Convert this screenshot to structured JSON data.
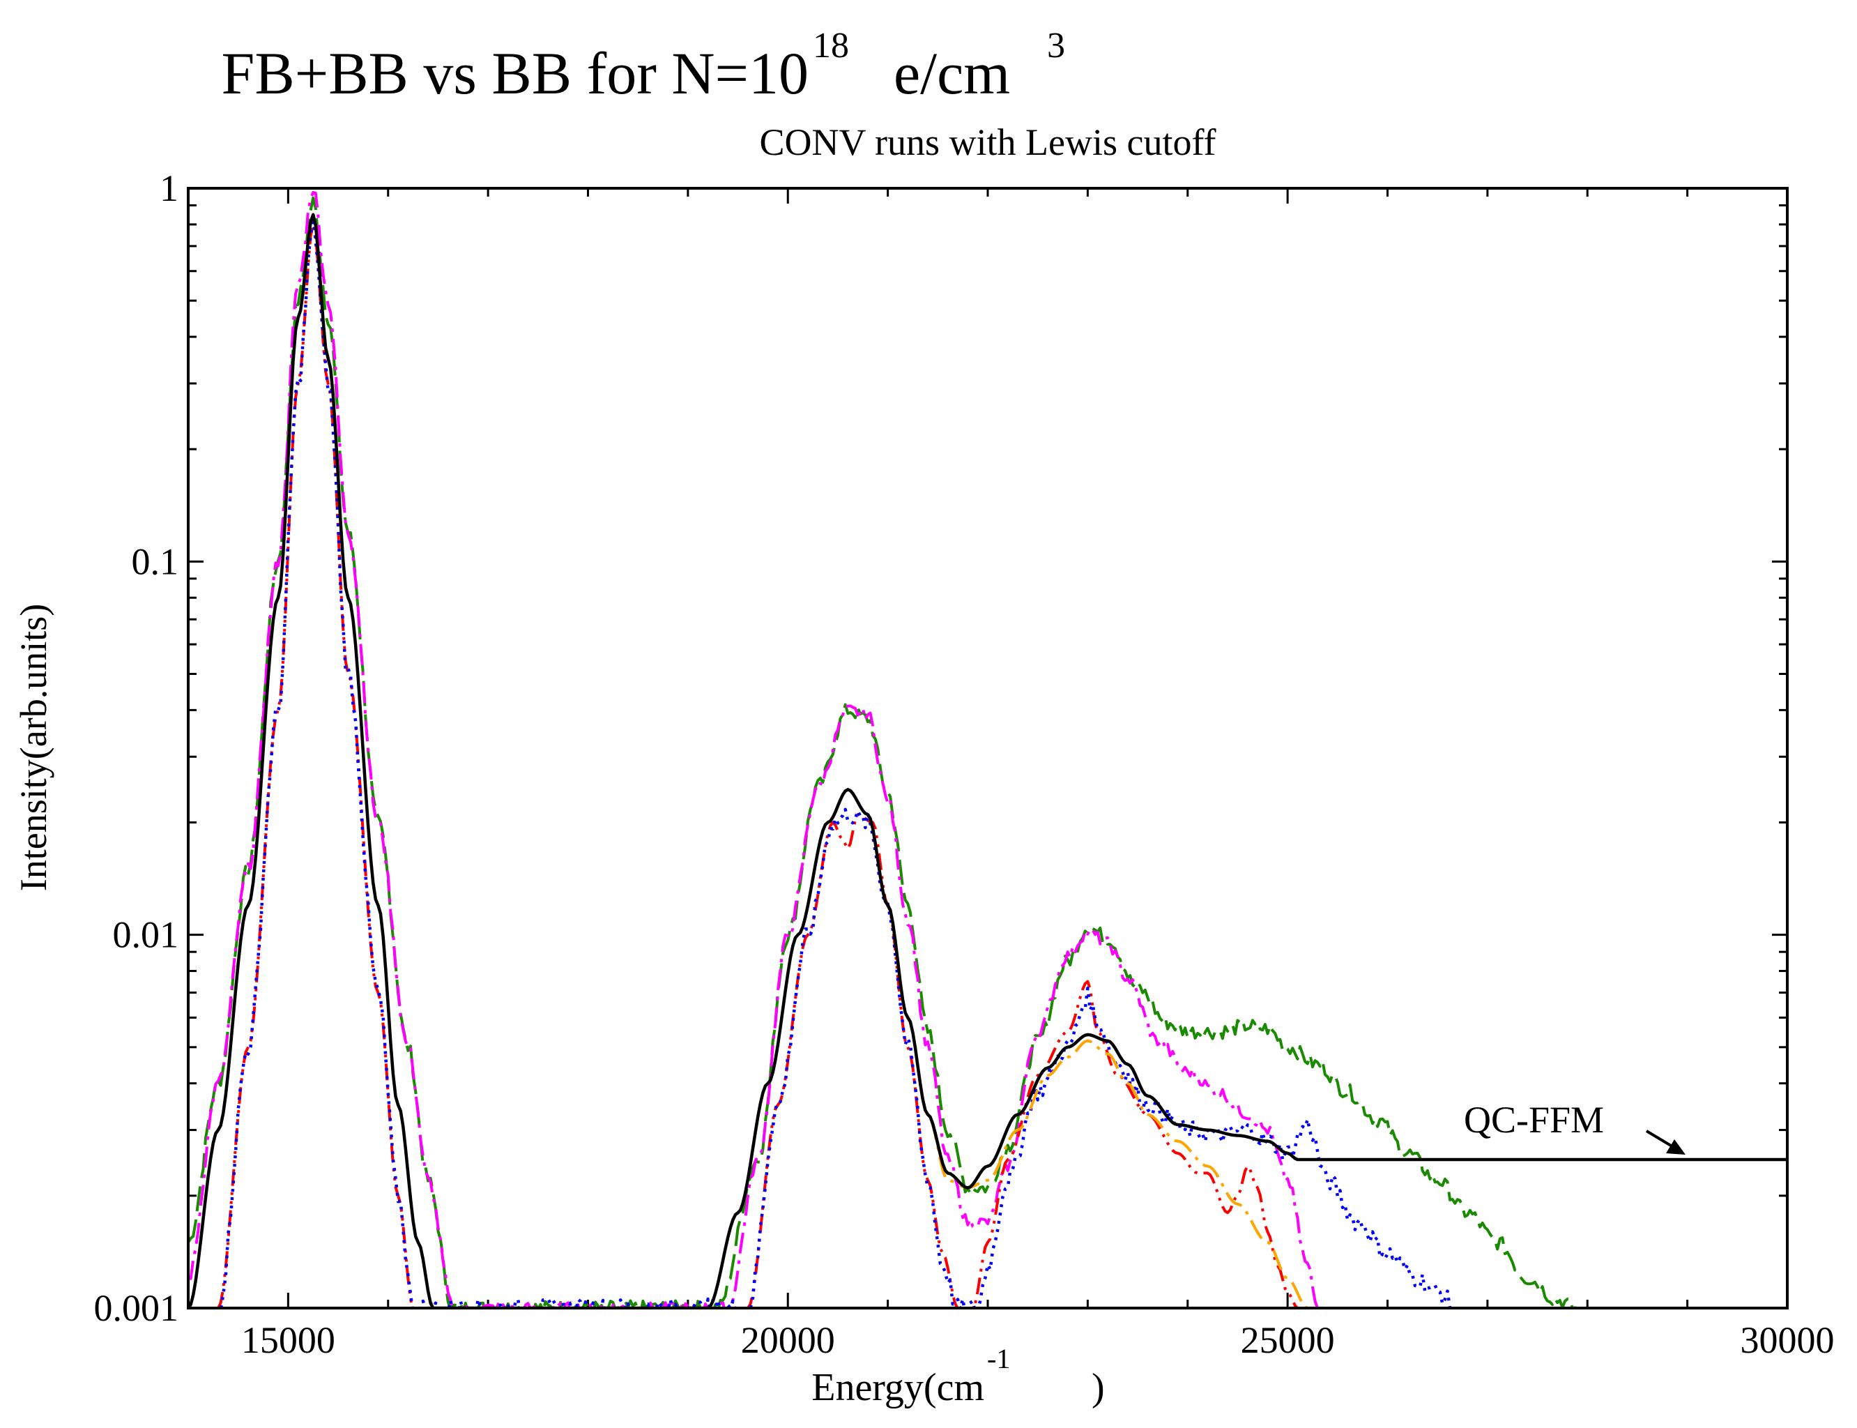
{
  "chart_data": {
    "type": "line",
    "title": "FB+BB vs BB for N=10",
    "title_exponent": "18",
    "title_suffix": "e/cm",
    "title_suffix_exponent": "3",
    "subtitle": "CONV runs with Lewis cutoff",
    "xlabel": "Energy(cm",
    "xlabel_exponent": "-1",
    "xlabel_close": ")",
    "ylabel": "Intensity(arb.units)",
    "xlim": [
      14000,
      30000
    ],
    "ylim": [
      0.001,
      1
    ],
    "y_scale": "log",
    "x_ticks": [
      15000,
      20000,
      25000,
      30000
    ],
    "x_tick_labels": [
      "15000",
      "20000",
      "25000",
      "30000"
    ],
    "y_ticks": [
      0.001,
      0.01,
      0.1,
      1
    ],
    "y_tick_labels": [
      "0.001",
      "0.01",
      "0.1",
      "1"
    ],
    "grid": false,
    "legend": "none",
    "annotation": {
      "text": "QC-FFM",
      "points_to": [
        29100,
        0.0025
      ]
    },
    "series": [
      {
        "color": "#1a8a00",
        "dash": "long-dash",
        "width": 4,
        "noise": 0.04,
        "x": [
          14000,
          14300,
          14600,
          14900,
          15100,
          15250,
          15400,
          15600,
          15900,
          16200,
          16400,
          16650,
          19300,
          19700,
          20000,
          20300,
          20600,
          20800,
          21000,
          21200,
          21400,
          21600,
          21800,
          22000,
          22200,
          22500,
          22800,
          23000,
          23200,
          23500,
          23800,
          24000,
          24300,
          24600,
          24800,
          25000,
          25300,
          25600,
          25900,
          26200,
          26500,
          26800,
          27100,
          27400,
          27700,
          27900
        ],
        "y": [
          0.0015,
          0.004,
          0.015,
          0.1,
          0.5,
          0.92,
          0.45,
          0.12,
          0.02,
          0.005,
          0.0022,
          0.001,
          0.001,
          0.0025,
          0.01,
          0.025,
          0.04,
          0.038,
          0.024,
          0.012,
          0.0055,
          0.003,
          0.0021,
          0.0021,
          0.0027,
          0.0052,
          0.0085,
          0.0105,
          0.0098,
          0.0072,
          0.0058,
          0.0055,
          0.0055,
          0.0057,
          0.0056,
          0.005,
          0.0045,
          0.0038,
          0.0032,
          0.0026,
          0.0022,
          0.0018,
          0.0015,
          0.0012,
          0.00105,
          0.001
        ]
      },
      {
        "color": "#ff00ff",
        "dash": "dash-dot",
        "width": 4,
        "noise": 0.03,
        "x": [
          14000,
          14300,
          14600,
          14900,
          15100,
          15250,
          15400,
          15600,
          15900,
          16200,
          16400,
          16650,
          19400,
          19700,
          20000,
          20300,
          20600,
          20800,
          21000,
          21200,
          21400,
          21600,
          21800,
          22000,
          22200,
          22500,
          22800,
          23000,
          23200,
          23400,
          23700,
          24000,
          24300,
          24600,
          24800,
          25000,
          25200,
          25300
        ],
        "y": [
          0.0012,
          0.004,
          0.015,
          0.1,
          0.55,
          1.0,
          0.5,
          0.12,
          0.02,
          0.005,
          0.0022,
          0.001,
          0.001,
          0.0025,
          0.01,
          0.025,
          0.04,
          0.039,
          0.023,
          0.011,
          0.005,
          0.0025,
          0.0017,
          0.0017,
          0.0024,
          0.0055,
          0.0088,
          0.0102,
          0.0095,
          0.0076,
          0.0052,
          0.0043,
          0.0038,
          0.0033,
          0.003,
          0.0022,
          0.0013,
          0.001
        ]
      },
      {
        "color": "#ff0000",
        "dash": "dash-dot-dot",
        "width": 4,
        "noise": 0,
        "x": [
          14300,
          14600,
          14900,
          15100,
          15250,
          15400,
          15600,
          15900,
          16100,
          16250,
          19600,
          19900,
          20200,
          20450,
          20550,
          20600,
          20700,
          20850,
          21000,
          21200,
          21400,
          21550,
          21700,
          21850,
          22000,
          22200,
          22500,
          22800,
          23000,
          23100,
          23300,
          23600,
          23900,
          24100,
          24200,
          24400,
          24500,
          24600,
          24700,
          24800,
          24900,
          25000,
          25100
        ],
        "y": [
          0.001,
          0.005,
          0.04,
          0.3,
          0.8,
          0.3,
          0.05,
          0.007,
          0.002,
          0.001,
          0.001,
          0.0035,
          0.01,
          0.02,
          0.018,
          0.017,
          0.021,
          0.02,
          0.012,
          0.005,
          0.0022,
          0.0014,
          0.001,
          0.001,
          0.0015,
          0.0025,
          0.0042,
          0.0055,
          0.0075,
          0.0055,
          0.0042,
          0.0033,
          0.0026,
          0.0023,
          0.0023,
          0.0018,
          0.002,
          0.0024,
          0.0021,
          0.0016,
          0.0013,
          0.0011,
          0.001
        ]
      },
      {
        "color": "#0000ff",
        "dash": "dotted",
        "width": 4.5,
        "noise": 0.05,
        "x": [
          14300,
          14600,
          14900,
          15100,
          15250,
          15400,
          15600,
          15900,
          16100,
          16250,
          19600,
          19900,
          20200,
          20450,
          20600,
          20800,
          21000,
          21200,
          21400,
          21550,
          21700,
          21900,
          22000,
          22200,
          22500,
          22800,
          23000,
          23100,
          23300,
          23600,
          24000,
          24300,
          24600,
          24800,
          25000,
          25200,
          25400,
          25700,
          26000,
          26300,
          26500,
          26700
        ],
        "y": [
          0.001,
          0.005,
          0.04,
          0.3,
          0.8,
          0.3,
          0.05,
          0.007,
          0.002,
          0.001,
          0.001,
          0.0035,
          0.01,
          0.02,
          0.021,
          0.02,
          0.012,
          0.005,
          0.0022,
          0.0013,
          0.001,
          0.001,
          0.0013,
          0.0022,
          0.0038,
          0.005,
          0.0068,
          0.0058,
          0.0045,
          0.0035,
          0.003,
          0.0029,
          0.003,
          0.0028,
          0.0026,
          0.0031,
          0.0022,
          0.0017,
          0.0014,
          0.0012,
          0.0011,
          0.001
        ]
      },
      {
        "color": "#ffa500",
        "dash": "dash-dot",
        "width": 4,
        "noise": 0,
        "x": [
          14000,
          14300,
          14600,
          14900,
          15100,
          15250,
          15400,
          15600,
          15900,
          16100,
          16300,
          16450,
          19200,
          19500,
          19800,
          20100,
          20400,
          20600,
          20800,
          21000,
          21200,
          21400,
          21600,
          21800,
          22000,
          22300,
          22600,
          22800,
          23000,
          23200,
          23400,
          23600,
          23900,
          24200,
          24500,
          24800,
          25000,
          25200
        ],
        "y": [
          0.001,
          0.003,
          0.012,
          0.08,
          0.45,
          0.85,
          0.35,
          0.08,
          0.012,
          0.0035,
          0.0015,
          0.001,
          0.001,
          0.0018,
          0.004,
          0.01,
          0.02,
          0.0245,
          0.021,
          0.012,
          0.006,
          0.0033,
          0.0022,
          0.0021,
          0.0022,
          0.003,
          0.0042,
          0.0047,
          0.0052,
          0.0048,
          0.004,
          0.0033,
          0.0028,
          0.0024,
          0.0019,
          0.0015,
          0.0012,
          0.001
        ]
      },
      {
        "color": "#000000",
        "dash": "solid",
        "width": 4.5,
        "noise": 0,
        "x": [
          14000,
          14300,
          14600,
          14900,
          15100,
          15250,
          15400,
          15600,
          15900,
          16100,
          16300,
          16450,
          19200,
          19500,
          19800,
          20100,
          20400,
          20600,
          20800,
          21000,
          21200,
          21400,
          21600,
          21800,
          22000,
          22300,
          22600,
          22800,
          23000,
          23200,
          23400,
          23600,
          23900,
          24200,
          24500,
          24800,
          25000,
          25100,
          25200,
          26000,
          27000,
          28000,
          29000,
          30000
        ],
        "y": [
          0.001,
          0.003,
          0.012,
          0.08,
          0.45,
          0.85,
          0.35,
          0.08,
          0.012,
          0.0035,
          0.0015,
          0.001,
          0.001,
          0.0018,
          0.004,
          0.01,
          0.02,
          0.0245,
          0.021,
          0.012,
          0.006,
          0.0033,
          0.0023,
          0.0021,
          0.0024,
          0.0033,
          0.0044,
          0.005,
          0.0054,
          0.0052,
          0.0045,
          0.0037,
          0.0031,
          0.003,
          0.0029,
          0.0028,
          0.0026,
          0.0025,
          0.0025,
          0.0025,
          0.0025,
          0.0025,
          0.0025,
          0.0025
        ]
      }
    ]
  }
}
